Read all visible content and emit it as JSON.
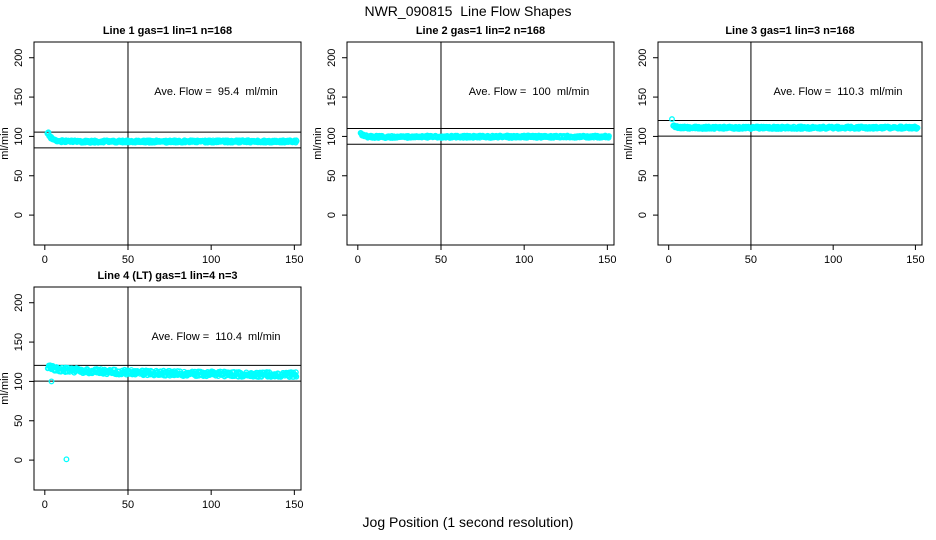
{
  "page": {
    "title": "NWR_090815  Line Flow Shapes",
    "xlabel": "Jog Position (1 second resolution)",
    "background_color": "#ffffff",
    "text_color": "#000000",
    "point_color": "#00ffff",
    "axis_color": "#000000"
  },
  "chart_data": [
    {
      "type": "scatter",
      "title": "Line 1 gas=1 lin=1 n=168",
      "gas": 1,
      "lin": 1,
      "n": 168,
      "ylabel": "ml/min",
      "annotation": "Ave. Flow =  95.4  ml/min",
      "ave_flow_ml_min": 95.4,
      "marker": "open-circle",
      "xlim": [
        -6.5,
        154
      ],
      "ylim": [
        -38,
        220
      ],
      "xticks": [
        0,
        50,
        100,
        150
      ],
      "yticks": [
        0,
        50,
        100,
        150,
        200
      ],
      "vline_x": 50,
      "hlines_y": [
        105.4,
        85.4
      ],
      "x_range": [
        2,
        151
      ],
      "points_per_x": 3,
      "band_halfwidth": 1.5,
      "profile": [
        [
          2,
          105
        ],
        [
          3,
          100.5
        ],
        [
          4,
          98
        ],
        [
          5,
          96.3
        ],
        [
          6,
          95.2
        ],
        [
          8,
          94.2
        ],
        [
          12,
          93.6
        ],
        [
          20,
          93.4
        ],
        [
          60,
          93.5
        ],
        [
          151,
          93.7
        ]
      ],
      "outliers": []
    },
    {
      "type": "scatter",
      "title": "Line 2 gas=1 lin=2 n=168",
      "gas": 1,
      "lin": 2,
      "n": 168,
      "ylabel": "ml/min",
      "annotation": "Ave. Flow =  100  ml/min",
      "ave_flow_ml_min": 100,
      "marker": "open-circle",
      "xlim": [
        -6.5,
        154
      ],
      "ylim": [
        -38,
        220
      ],
      "xticks": [
        0,
        50,
        100,
        150
      ],
      "yticks": [
        0,
        50,
        100,
        150,
        200
      ],
      "vline_x": 50,
      "hlines_y": [
        110,
        90
      ],
      "x_range": [
        2,
        151
      ],
      "points_per_x": 3,
      "band_halfwidth": 1.5,
      "profile": [
        [
          2,
          103.5
        ],
        [
          3,
          101.5
        ],
        [
          4,
          100.5
        ],
        [
          6,
          99.8
        ],
        [
          10,
          99.5
        ],
        [
          20,
          99.5
        ],
        [
          80,
          99.6
        ],
        [
          151,
          99.7
        ]
      ],
      "outliers": []
    },
    {
      "type": "scatter",
      "title": "Line 3 gas=1 lin=3 n=168",
      "gas": 1,
      "lin": 3,
      "n": 168,
      "ylabel": "ml/min",
      "annotation": "Ave. Flow =  110.3  ml/min",
      "ave_flow_ml_min": 110.3,
      "marker": "open-circle",
      "xlim": [
        -6.5,
        154
      ],
      "ylim": [
        -38,
        220
      ],
      "xticks": [
        0,
        50,
        100,
        150
      ],
      "yticks": [
        0,
        50,
        100,
        150,
        200
      ],
      "vline_x": 50,
      "hlines_y": [
        120.3,
        100.3
      ],
      "x_range": [
        3,
        151
      ],
      "points_per_x": 3,
      "band_halfwidth": 1.5,
      "profile": [
        [
          3,
          114
        ],
        [
          4,
          112.8
        ],
        [
          6,
          111.8
        ],
        [
          10,
          111.2
        ],
        [
          20,
          111
        ],
        [
          60,
          111
        ],
        [
          151,
          111.2
        ]
      ],
      "outliers": [
        [
          2,
          122
        ]
      ]
    },
    {
      "type": "scatter",
      "title": "Line 4 (LT) gas=1 lin=4 n=3",
      "gas": 1,
      "lin": 4,
      "n": 3,
      "ylabel": "ml/min",
      "annotation": "Ave. Flow =  110.4  ml/min",
      "ave_flow_ml_min": 110.4,
      "marker": "open-circle",
      "xlim": [
        -6.5,
        154
      ],
      "ylim": [
        -38,
        220
      ],
      "xticks": [
        0,
        50,
        100,
        150
      ],
      "yticks": [
        0,
        50,
        100,
        150,
        200
      ],
      "vline_x": 50,
      "hlines_y": [
        120.4,
        100.4
      ],
      "x_range": [
        2,
        151
      ],
      "points_per_x": 3,
      "band_halfwidth": 3.2,
      "profile": [
        [
          2,
          119
        ],
        [
          4,
          117.5
        ],
        [
          8,
          116
        ],
        [
          14,
          114.5
        ],
        [
          25,
          113
        ],
        [
          40,
          112
        ],
        [
          60,
          110.8
        ],
        [
          90,
          109.8
        ],
        [
          120,
          109
        ],
        [
          151,
          108.5
        ]
      ],
      "outliers": [
        [
          4,
          100
        ],
        [
          13,
          1
        ]
      ]
    }
  ]
}
